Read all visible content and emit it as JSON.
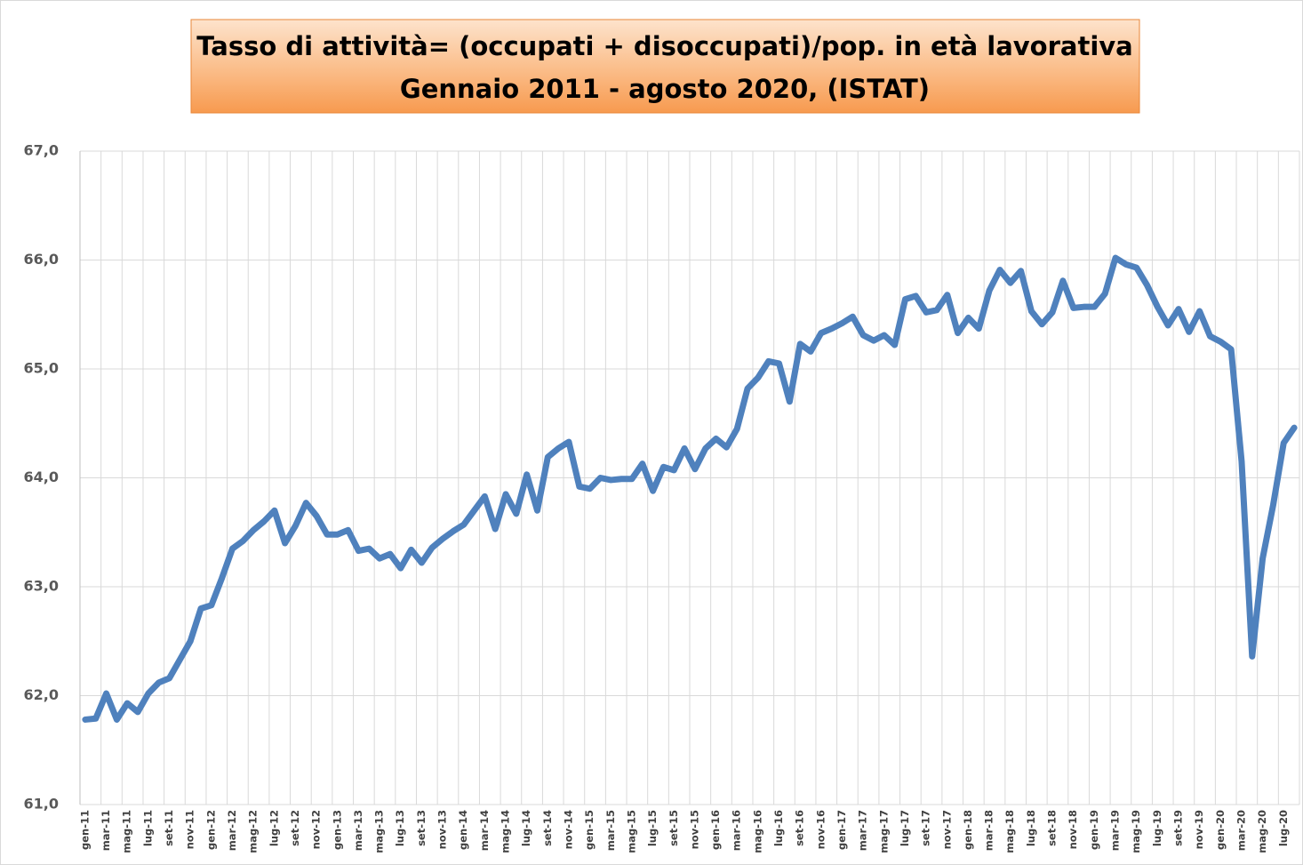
{
  "chart_data": {
    "type": "line",
    "title": "Tasso di attività= (occupati + disoccupati)/pop. in età lavorativa",
    "subtitle": "Gennaio 2011 - agosto 2020, (ISTAT)",
    "categories": [
      "gen-11",
      null,
      "mar-11",
      null,
      "mag-11",
      null,
      "lug-11",
      null,
      "set-11",
      null,
      "nov-11",
      null,
      "gen-12",
      null,
      "mar-12",
      null,
      "mag-12",
      null,
      "lug-12",
      null,
      "set-12",
      null,
      "nov-12",
      null,
      "gen-13",
      null,
      "mar-13",
      null,
      "mag-13",
      null,
      "lug-13",
      null,
      "set-13",
      null,
      "nov-13",
      null,
      "gen-14",
      null,
      "mar-14",
      null,
      "mag-14",
      null,
      "lug-14",
      null,
      "set-14",
      null,
      "nov-14",
      null,
      "gen-15",
      null,
      "mar-15",
      null,
      "mag-15",
      null,
      "lug-15",
      null,
      "set-15",
      null,
      "nov-15",
      null,
      "gen-16",
      null,
      "mar-16",
      null,
      "mag-16",
      null,
      "lug-16",
      null,
      "set-16",
      null,
      "nov-16",
      null,
      "gen-17",
      null,
      "mar-17",
      null,
      "mag-17",
      null,
      "lug-17",
      null,
      "set-17",
      null,
      "nov-17",
      null,
      "gen-18",
      null,
      "mar-18",
      null,
      "mag-18",
      null,
      "lug-18",
      null,
      "set-18",
      null,
      "nov-18",
      null,
      "gen-19",
      null,
      "mar-19",
      null,
      "mag-19",
      null,
      "lug-19",
      null,
      "set-19",
      null,
      "nov-19",
      null,
      "gen-20",
      null,
      "mar-20",
      null,
      "mag-20",
      null,
      "lug-20",
      null
    ],
    "values": [
      61.78,
      61.79,
      62.02,
      61.78,
      61.93,
      61.85,
      62.02,
      62.12,
      62.16,
      62.33,
      62.5,
      62.8,
      62.83,
      63.08,
      63.35,
      63.42,
      63.52,
      63.6,
      63.7,
      63.4,
      63.56,
      63.77,
      63.65,
      63.48,
      63.48,
      63.52,
      63.33,
      63.35,
      63.26,
      63.3,
      63.17,
      63.34,
      63.22,
      63.36,
      63.44,
      63.51,
      63.57,
      63.7,
      63.83,
      63.53,
      63.85,
      63.67,
      64.03,
      63.7,
      64.19,
      64.27,
      64.33,
      63.92,
      63.9,
      64.0,
      63.98,
      63.99,
      63.99,
      64.13,
      63.88,
      64.1,
      64.07,
      64.27,
      64.08,
      64.27,
      64.36,
      64.28,
      64.45,
      64.82,
      64.92,
      65.07,
      65.05,
      64.7,
      65.23,
      65.16,
      65.33,
      65.37,
      65.42,
      65.48,
      65.31,
      65.26,
      65.31,
      65.22,
      65.64,
      65.67,
      65.52,
      65.54,
      65.68,
      65.33,
      65.47,
      65.37,
      65.72,
      65.91,
      65.79,
      65.9,
      65.53,
      65.41,
      65.52,
      65.81,
      65.56,
      65.57,
      65.57,
      65.69,
      66.02,
      65.96,
      65.93,
      65.77,
      65.57,
      65.4,
      65.55,
      65.34,
      65.53,
      65.3,
      65.25,
      65.18,
      64.15,
      62.36,
      63.26,
      63.75,
      64.32,
      64.46
    ],
    "color": "#4f81bd",
    "ylim": [
      61,
      67
    ],
    "yticks": [
      {
        "value": 61,
        "label": "61,0"
      },
      {
        "value": 62,
        "label": "62,0"
      },
      {
        "value": 63,
        "label": "63,0"
      },
      {
        "value": 64,
        "label": "64,0"
      },
      {
        "value": 65,
        "label": "65,0"
      },
      {
        "value": 66,
        "label": "66,0"
      },
      {
        "value": 67,
        "label": "67,0"
      }
    ],
    "grid": true
  }
}
